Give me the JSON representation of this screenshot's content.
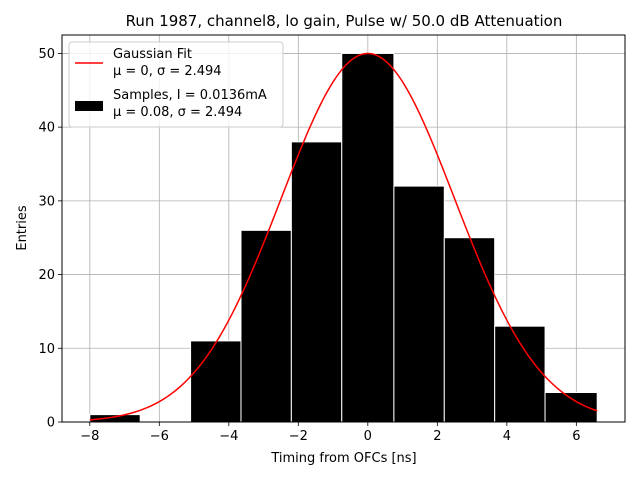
{
  "chart_data": {
    "type": "bar",
    "title": "Run 1987, channel8, lo gain, Pulse w/ 50.0 dB Attenuation",
    "xlabel": "Timing from OFCs [ns]",
    "ylabel": "Entries",
    "xlim": [
      -8.8,
      7.4
    ],
    "ylim": [
      0,
      52.5
    ],
    "xticks": [
      -8,
      -6,
      -4,
      -2,
      0,
      2,
      4,
      6
    ],
    "xtick_labels": [
      "−8",
      "−6",
      "−4",
      "−2",
      "0",
      "2",
      "4",
      "6"
    ],
    "yticks": [
      0,
      10,
      20,
      30,
      40,
      50
    ],
    "ytick_labels": [
      "0",
      "10",
      "20",
      "30",
      "40",
      "50"
    ],
    "grid": true,
    "legend_position": "top-left",
    "bins": [
      {
        "left": -8.0,
        "right": -6.55,
        "count": 1
      },
      {
        "left": -6.55,
        "right": -5.1,
        "count": 0
      },
      {
        "left": -5.1,
        "right": -3.65,
        "count": 11
      },
      {
        "left": -3.65,
        "right": -2.2,
        "count": 26
      },
      {
        "left": -2.2,
        "right": -0.75,
        "count": 38
      },
      {
        "left": -0.75,
        "right": 0.75,
        "count": 50
      },
      {
        "left": 0.75,
        "right": 2.2,
        "count": 32
      },
      {
        "left": 2.2,
        "right": 3.65,
        "count": 25
      },
      {
        "left": 3.65,
        "right": 5.1,
        "count": 13
      },
      {
        "left": 5.1,
        "right": 6.6,
        "count": 4
      }
    ],
    "fit": {
      "name": "Gaussian Fit",
      "mu": 0,
      "sigma": 2.494,
      "amplitude": 50,
      "x_range": [
        -8.0,
        6.6
      ],
      "color": "#ff0000"
    },
    "series": [
      {
        "name": "Gaussian Fit",
        "stats": "μ = 0, σ = 2.494",
        "kind": "line",
        "color": "#ff0000"
      },
      {
        "name": "Samples, I = 0.0136mA",
        "stats": "μ = 0.08, σ = 2.494",
        "kind": "bar",
        "color": "#000000"
      }
    ]
  }
}
